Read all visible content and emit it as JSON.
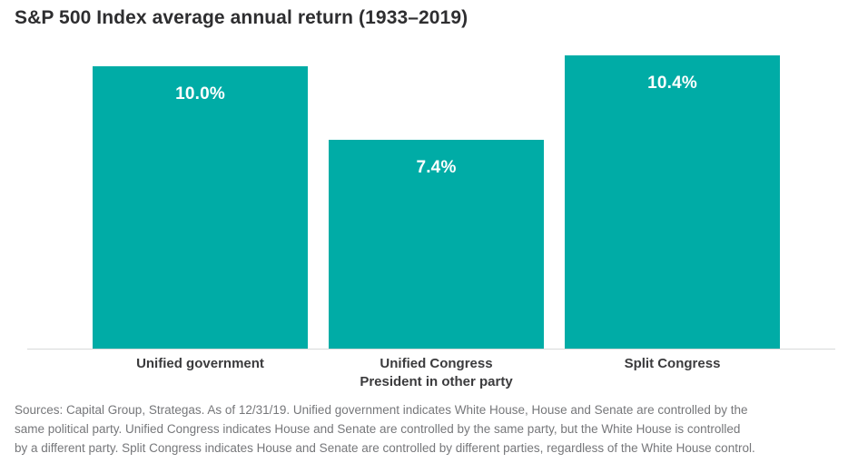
{
  "title": "S&P 500 Index average annual return (1933–2019)",
  "chart_data": {
    "type": "bar",
    "title": "S&P 500 Index average annual return (1933–2019)",
    "categories": [
      "Unified government",
      "Unified Congress President in other party",
      "Split Congress"
    ],
    "values": [
      10.0,
      7.4,
      10.4
    ],
    "value_labels": [
      "10.0%",
      "7.4%",
      "10.4%"
    ],
    "xlabel": "",
    "ylabel": "",
    "ylim": [
      0,
      10.4
    ],
    "grid": false,
    "legend": "none",
    "bar_color": "#00aca6",
    "value_label_color": "#ffffff",
    "axis_line_color": "#d8d9da"
  },
  "bars": [
    {
      "value_label": "10.0%",
      "category_lines": [
        "Unified government"
      ]
    },
    {
      "value_label": "7.4%",
      "category_lines": [
        "Unified Congress",
        "President in other party"
      ]
    },
    {
      "value_label": "10.4%",
      "category_lines": [
        "Split Congress"
      ]
    }
  ],
  "footer": {
    "lines": [
      "Sources: Capital Group, Strategas. As of 12/31/19. Unified government indicates White House, House and Senate are controlled by the",
      "same political party. Unified Congress indicates House and Senate are controlled by the same party, but the White House is controlled",
      "by a different party. Split Congress indicates House and Senate are controlled by different parties, regardless of the White House control."
    ]
  }
}
